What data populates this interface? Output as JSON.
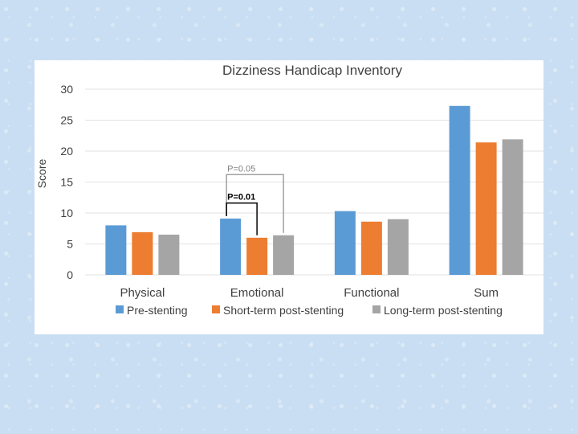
{
  "chart_data": {
    "type": "bar",
    "title": "Dizziness Handicap Inventory",
    "xlabel": "",
    "ylabel": "Score",
    "ylim": [
      0,
      30
    ],
    "yticks": [
      "0",
      "5",
      "10",
      "15",
      "20",
      "25",
      "30"
    ],
    "grid": true,
    "legend_position": "bottom",
    "categories": [
      "Physical",
      "Emotional",
      "Functional",
      "Sum"
    ],
    "series": [
      {
        "name": "Pre-stenting",
        "color": "#5b9bd5",
        "values": [
          8.0,
          9.1,
          10.3,
          27.3
        ]
      },
      {
        "name": "Short-term post-stenting",
        "color": "#ed7d31",
        "values": [
          6.9,
          6.0,
          8.6,
          21.4
        ]
      },
      {
        "name": "Long-term post-stenting",
        "color": "#a5a5a5",
        "values": [
          6.5,
          6.4,
          9.0,
          21.9
        ]
      }
    ],
    "annotations": [
      {
        "text": "P=0.05",
        "category": "Emotional",
        "from_series": 0,
        "to_series": 2,
        "level": 16.2,
        "bold": false
      },
      {
        "text": "P=0.01",
        "category": "Emotional",
        "from_series": 0,
        "to_series": 1,
        "level": 11.6,
        "bold": true
      }
    ]
  }
}
